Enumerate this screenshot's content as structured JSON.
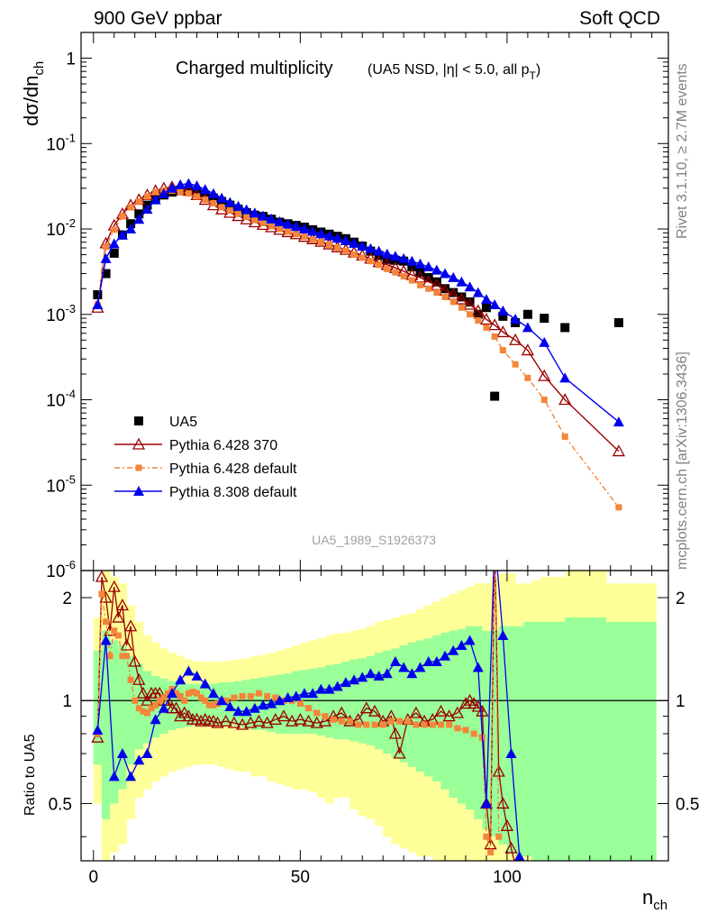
{
  "header": {
    "left": "900 GeV ppbar",
    "right": "Soft QCD"
  },
  "side_labels": {
    "rivet": "Rivet 3.1.10, ≥ 2.7M events",
    "mcplots": "mcplots.cern.ch [arXiv:1306.3436]"
  },
  "chart_data": {
    "type": "scatter",
    "title": "Charged multiplicity",
    "subtitle": "(UA5 NSD, |η| < 5.0, all p_T)",
    "analysis_id": "UA5_1989_S1926373",
    "xlabel": "n_ch",
    "ylabel": "dσ/dn_ch",
    "ratio_ylabel": "Ratio to UA5",
    "xlim": [
      -3,
      139
    ],
    "ylim": [
      1e-06,
      2
    ],
    "ylog": true,
    "ratio_ylim": [
      0.34,
      2.4
    ],
    "ratio_ylog": true,
    "xticks": [
      0,
      50,
      100
    ],
    "yticks": [
      1e-06,
      1e-05,
      0.0001,
      0.001,
      0.01,
      0.1,
      1
    ],
    "ytick_labels": [
      "10^-6",
      "10^-5",
      "10^-4",
      "10^-3",
      "10^-2",
      "10^-1",
      "1"
    ],
    "ratio_yticks": [
      0.5,
      1,
      2
    ],
    "ratio_ytick_labels": [
      "0.5",
      "1",
      "2"
    ],
    "legend_position": "bottom-left",
    "colors": {
      "data": "#000000",
      "p6_370": "#9b0000",
      "p6_default": "#f4853a",
      "p8_default": "#0000ee",
      "band_outer": "#ffff99",
      "band_inner": "#99ff99"
    },
    "data_series": {
      "name": "UA5",
      "x": [
        1,
        3,
        5,
        7,
        9,
        11,
        13,
        15,
        17,
        19,
        21,
        23,
        25,
        27,
        29,
        31,
        33,
        35,
        37,
        39,
        41,
        43,
        45,
        47,
        49,
        51,
        53,
        55,
        57,
        59,
        61,
        63,
        65,
        67,
        69,
        71,
        73,
        75,
        77,
        79,
        81,
        83,
        85,
        87,
        89,
        91,
        93,
        95,
        97,
        99,
        102,
        105,
        109,
        114,
        127
      ],
      "y": [
        0.0017,
        0.003,
        0.0052,
        0.0085,
        0.0115,
        0.015,
        0.019,
        0.022,
        0.025,
        0.027,
        0.028,
        0.028,
        0.027,
        0.025,
        0.023,
        0.021,
        0.019,
        0.017,
        0.0155,
        0.0145,
        0.014,
        0.013,
        0.012,
        0.0115,
        0.011,
        0.0105,
        0.0098,
        0.0092,
        0.0087,
        0.0082,
        0.0077,
        0.007,
        0.0063,
        0.0055,
        0.0049,
        0.0044,
        0.0043,
        0.0042,
        0.0036,
        0.0031,
        0.0027,
        0.0024,
        0.002,
        0.0018,
        0.0016,
        0.0014,
        0.001,
        0.0012,
        0.00011,
        0.00095,
        0.0008,
        0.001,
        0.0009,
        0.0007,
        0.0008
      ]
    },
    "series": [
      {
        "name": "Pythia 6.428 370",
        "key": "p6_370",
        "x": [
          1,
          3,
          5,
          7,
          9,
          11,
          13,
          15,
          17,
          19,
          21,
          23,
          25,
          27,
          29,
          31,
          33,
          35,
          37,
          39,
          41,
          43,
          45,
          47,
          49,
          51,
          53,
          55,
          57,
          59,
          61,
          63,
          65,
          67,
          69,
          71,
          73,
          75,
          77,
          79,
          81,
          83,
          85,
          87,
          89,
          91,
          93,
          95,
          97,
          99,
          102,
          105,
          109,
          114,
          127
        ],
        "y": [
          0.0012,
          0.0068,
          0.011,
          0.015,
          0.019,
          0.022,
          0.025,
          0.028,
          0.03,
          0.031,
          0.03,
          0.028,
          0.025,
          0.022,
          0.019,
          0.017,
          0.0155,
          0.0142,
          0.013,
          0.012,
          0.0112,
          0.0105,
          0.0098,
          0.0092,
          0.0087,
          0.0081,
          0.0076,
          0.0071,
          0.0066,
          0.0061,
          0.0057,
          0.0053,
          0.0049,
          0.0045,
          0.0041,
          0.0038,
          0.0035,
          0.0032,
          0.0029,
          0.0027,
          0.0024,
          0.0022,
          0.0019,
          0.0017,
          0.0015,
          0.0013,
          0.0011,
          0.00087,
          0.00075,
          0.00062,
          0.0005,
          0.00038,
          0.00019,
          0.0001,
          2.5e-05
        ]
      },
      {
        "name": "Pythia 6.428 default",
        "key": "p6_default",
        "x": [
          1,
          3,
          5,
          7,
          9,
          11,
          13,
          15,
          17,
          19,
          21,
          23,
          25,
          27,
          29,
          31,
          33,
          35,
          37,
          39,
          41,
          43,
          45,
          47,
          49,
          51,
          53,
          55,
          57,
          59,
          61,
          63,
          65,
          67,
          69,
          71,
          73,
          75,
          77,
          79,
          81,
          83,
          85,
          87,
          89,
          91,
          93,
          95,
          97,
          99,
          102,
          105,
          109,
          114,
          127
        ],
        "y": [
          0.0013,
          0.0062,
          0.0098,
          0.014,
          0.018,
          0.021,
          0.024,
          0.027,
          0.028,
          0.028,
          0.027,
          0.026,
          0.024,
          0.022,
          0.02,
          0.018,
          0.0165,
          0.015,
          0.0138,
          0.0127,
          0.0117,
          0.0108,
          0.01,
          0.0093,
          0.0087,
          0.0081,
          0.0075,
          0.007,
          0.0065,
          0.006,
          0.0055,
          0.005,
          0.0046,
          0.0042,
          0.0038,
          0.0034,
          0.0031,
          0.0028,
          0.0025,
          0.0022,
          0.002,
          0.0018,
          0.0016,
          0.0014,
          0.0012,
          0.001,
          0.00085,
          0.0007,
          0.00055,
          0.00038,
          0.00026,
          0.00018,
          0.0001,
          3.7e-05,
          5.5e-06
        ]
      },
      {
        "name": "Pythia 8.308 default",
        "key": "p8_default",
        "x": [
          1,
          3,
          5,
          7,
          9,
          11,
          13,
          15,
          17,
          19,
          21,
          23,
          25,
          27,
          29,
          31,
          33,
          35,
          37,
          39,
          41,
          43,
          45,
          47,
          49,
          51,
          53,
          55,
          57,
          59,
          61,
          63,
          65,
          67,
          69,
          71,
          73,
          75,
          77,
          79,
          81,
          83,
          85,
          87,
          89,
          91,
          93,
          95,
          97,
          99,
          102,
          105,
          109,
          114,
          127
        ],
        "y": [
          0.0013,
          0.0045,
          0.0067,
          0.0085,
          0.01,
          0.013,
          0.017,
          0.022,
          0.026,
          0.03,
          0.033,
          0.034,
          0.032,
          0.029,
          0.026,
          0.023,
          0.0205,
          0.0185,
          0.0168,
          0.0154,
          0.0142,
          0.0131,
          0.0122,
          0.0114,
          0.0107,
          0.01,
          0.0094,
          0.0088,
          0.0083,
          0.0078,
          0.0073,
          0.0068,
          0.0063,
          0.0059,
          0.0055,
          0.0051,
          0.0048,
          0.0045,
          0.0042,
          0.0039,
          0.0036,
          0.0033,
          0.003,
          0.0027,
          0.0024,
          0.0021,
          0.0018,
          0.0015,
          0.0013,
          0.0011,
          0.00088,
          0.0007,
          0.00047,
          0.00018,
          5.5e-05
        ]
      }
    ],
    "ratio_series": [
      {
        "key": "p6_370",
        "x": [
          1,
          2,
          3,
          4,
          5,
          6,
          7,
          8,
          9,
          10,
          11,
          12,
          13,
          14,
          15,
          16,
          17,
          18,
          19,
          20,
          21,
          22,
          23,
          24,
          25,
          26,
          27,
          28,
          29,
          30,
          32,
          34,
          36,
          38,
          40,
          42,
          44,
          46,
          48,
          50,
          52,
          54,
          56,
          58,
          60,
          62,
          64,
          66,
          68,
          70,
          72,
          73,
          74,
          76,
          78,
          80,
          82,
          84,
          86,
          88,
          90,
          91,
          92,
          93,
          94,
          95,
          96,
          97,
          98,
          99,
          100,
          101,
          102,
          103,
          104
        ],
        "y": [
          0.78,
          2.3,
          2.0,
          1.6,
          2.15,
          1.75,
          1.9,
          1.45,
          1.65,
          1.3,
          1.15,
          1.05,
          1.0,
          1.05,
          1.05,
          1.05,
          1.0,
          1.0,
          0.95,
          0.95,
          0.9,
          0.92,
          0.9,
          0.88,
          0.88,
          0.87,
          0.88,
          0.87,
          0.87,
          0.86,
          0.87,
          0.86,
          0.85,
          0.86,
          0.87,
          0.86,
          0.88,
          0.9,
          0.87,
          0.88,
          0.87,
          0.86,
          0.87,
          0.9,
          0.92,
          0.87,
          0.88,
          0.95,
          0.93,
          0.87,
          0.9,
          0.8,
          0.7,
          0.88,
          0.92,
          0.87,
          0.88,
          0.93,
          0.9,
          0.92,
          0.98,
          1.0,
          0.98,
          0.96,
          0.93,
          0.5,
          0.38,
          3.0,
          0.62,
          0.5,
          0.43,
          0.37,
          0.33,
          0.3,
          0.28
        ]
      },
      {
        "key": "p6_default",
        "x": [
          1,
          2,
          3,
          4,
          5,
          6,
          7,
          8,
          9,
          10,
          11,
          12,
          13,
          14,
          15,
          16,
          17,
          18,
          19,
          20,
          21,
          22,
          23,
          24,
          25,
          26,
          27,
          28,
          29,
          30,
          32,
          34,
          36,
          38,
          40,
          42,
          44,
          46,
          48,
          50,
          52,
          54,
          56,
          58,
          60,
          62,
          64,
          66,
          68,
          70,
          72,
          74,
          76,
          78,
          80,
          82,
          84,
          86,
          88,
          90,
          92,
          94,
          95,
          96,
          97,
          98
        ],
        "y": [
          0.8,
          2.05,
          1.7,
          1.35,
          1.6,
          1.55,
          1.35,
          1.35,
          1.15,
          1.0,
          0.95,
          0.93,
          0.92,
          0.95,
          0.97,
          1.0,
          1.02,
          1.05,
          1.08,
          1.05,
          1.03,
          1.0,
          1.05,
          1.06,
          1.05,
          1.02,
          1.0,
          0.97,
          0.97,
          0.98,
          1.0,
          1.02,
          1.03,
          1.03,
          1.05,
          1.03,
          1.02,
          1.0,
          1.0,
          0.98,
          0.95,
          0.92,
          0.9,
          0.88,
          0.87,
          0.87,
          0.85,
          0.85,
          0.85,
          0.85,
          0.87,
          0.87,
          0.87,
          0.85,
          0.85,
          0.85,
          0.85,
          0.85,
          0.83,
          0.82,
          0.8,
          0.78,
          0.4,
          0.36,
          3.0,
          0.4
        ]
      },
      {
        "key": "p8_default",
        "x": [
          1,
          3,
          5,
          7,
          9,
          11,
          13,
          15,
          17,
          19,
          21,
          23,
          25,
          27,
          29,
          31,
          33,
          35,
          37,
          39,
          41,
          43,
          45,
          47,
          49,
          51,
          53,
          55,
          57,
          59,
          61,
          63,
          65,
          67,
          69,
          71,
          73,
          75,
          77,
          79,
          81,
          83,
          85,
          87,
          89,
          91,
          93,
          95,
          97,
          99,
          101,
          103,
          105
        ],
        "y": [
          0.82,
          1.5,
          0.6,
          0.7,
          0.6,
          0.67,
          0.7,
          0.88,
          0.95,
          1.05,
          1.15,
          1.22,
          1.18,
          1.12,
          1.05,
          1.0,
          0.96,
          0.93,
          0.93,
          0.95,
          0.97,
          0.98,
          1.0,
          1.02,
          1.03,
          1.05,
          1.05,
          1.08,
          1.08,
          1.1,
          1.13,
          1.15,
          1.17,
          1.2,
          1.18,
          1.2,
          1.3,
          1.25,
          1.2,
          1.25,
          1.3,
          1.3,
          1.35,
          1.4,
          1.45,
          1.5,
          1.25,
          0.5,
          3.0,
          1.55,
          0.7,
          0.35,
          0.33
        ]
      }
    ],
    "ratio_bands": {
      "x_edges": [
        0,
        2,
        4,
        6,
        8,
        10,
        12,
        14,
        16,
        18,
        20,
        22,
        24,
        26,
        28,
        30,
        32,
        34,
        36,
        38,
        40,
        42,
        44,
        46,
        48,
        50,
        52,
        54,
        56,
        58,
        60,
        62,
        64,
        66,
        68,
        70,
        72,
        74,
        76,
        78,
        80,
        82,
        84,
        86,
        88,
        90,
        92,
        94,
        96,
        98,
        100,
        102,
        104,
        106,
        108,
        110,
        114,
        118,
        124,
        130,
        136
      ],
      "outer_lo": [
        0.5,
        0.34,
        0.36,
        0.38,
        0.45,
        0.52,
        0.55,
        0.58,
        0.6,
        0.62,
        0.63,
        0.64,
        0.65,
        0.65,
        0.65,
        0.64,
        0.63,
        0.62,
        0.62,
        0.6,
        0.6,
        0.58,
        0.57,
        0.56,
        0.55,
        0.55,
        0.54,
        0.52,
        0.5,
        0.52,
        0.52,
        0.48,
        0.46,
        0.45,
        0.43,
        0.4,
        0.38,
        0.37,
        0.36,
        0.35,
        0.35,
        0.34,
        0.34,
        0.34,
        0.34,
        0.34,
        0.34,
        0.34,
        0.34,
        0.34,
        0.34,
        0.34,
        0.34,
        0.34,
        0.34,
        0.34,
        0.34,
        0.34,
        0.34,
        0.34
      ],
      "outer_hi": [
        1.75,
        2.4,
        2.3,
        2.2,
        1.9,
        1.7,
        1.55,
        1.48,
        1.42,
        1.38,
        1.35,
        1.32,
        1.3,
        1.3,
        1.3,
        1.3,
        1.31,
        1.32,
        1.33,
        1.35,
        1.36,
        1.38,
        1.4,
        1.42,
        1.45,
        1.48,
        1.5,
        1.52,
        1.55,
        1.57,
        1.58,
        1.6,
        1.62,
        1.65,
        1.7,
        1.72,
        1.75,
        1.78,
        1.8,
        1.85,
        1.9,
        1.95,
        2.0,
        2.05,
        2.1,
        2.15,
        2.2,
        2.2,
        2.3,
        2.35,
        2.35,
        2.2,
        2.2,
        2.25,
        2.3,
        2.3,
        2.4,
        2.4,
        2.2,
        2.2
      ],
      "inner_lo": [
        0.65,
        0.45,
        0.5,
        0.55,
        0.65,
        0.72,
        0.75,
        0.78,
        0.8,
        0.82,
        0.83,
        0.84,
        0.85,
        0.85,
        0.85,
        0.85,
        0.85,
        0.84,
        0.83,
        0.82,
        0.82,
        0.81,
        0.8,
        0.8,
        0.8,
        0.8,
        0.8,
        0.79,
        0.78,
        0.77,
        0.77,
        0.76,
        0.75,
        0.74,
        0.72,
        0.7,
        0.68,
        0.66,
        0.64,
        0.62,
        0.6,
        0.58,
        0.55,
        0.52,
        0.5,
        0.48,
        0.45,
        0.42,
        0.4,
        0.38,
        0.36,
        0.35,
        0.35,
        0.34,
        0.34,
        0.34,
        0.34,
        0.34,
        0.34,
        0.34
      ],
      "inner_hi": [
        1.4,
        1.6,
        1.5,
        1.45,
        1.35,
        1.28,
        1.22,
        1.18,
        1.16,
        1.14,
        1.13,
        1.12,
        1.12,
        1.12,
        1.12,
        1.13,
        1.13,
        1.14,
        1.15,
        1.16,
        1.17,
        1.18,
        1.19,
        1.2,
        1.22,
        1.23,
        1.24,
        1.25,
        1.27,
        1.28,
        1.3,
        1.32,
        1.33,
        1.35,
        1.38,
        1.4,
        1.42,
        1.45,
        1.48,
        1.5,
        1.52,
        1.55,
        1.58,
        1.6,
        1.62,
        1.65,
        1.65,
        1.6,
        1.6,
        1.65,
        1.65,
        1.65,
        1.7,
        1.7,
        1.7,
        1.7,
        1.75,
        1.75,
        1.7,
        1.7
      ]
    }
  }
}
